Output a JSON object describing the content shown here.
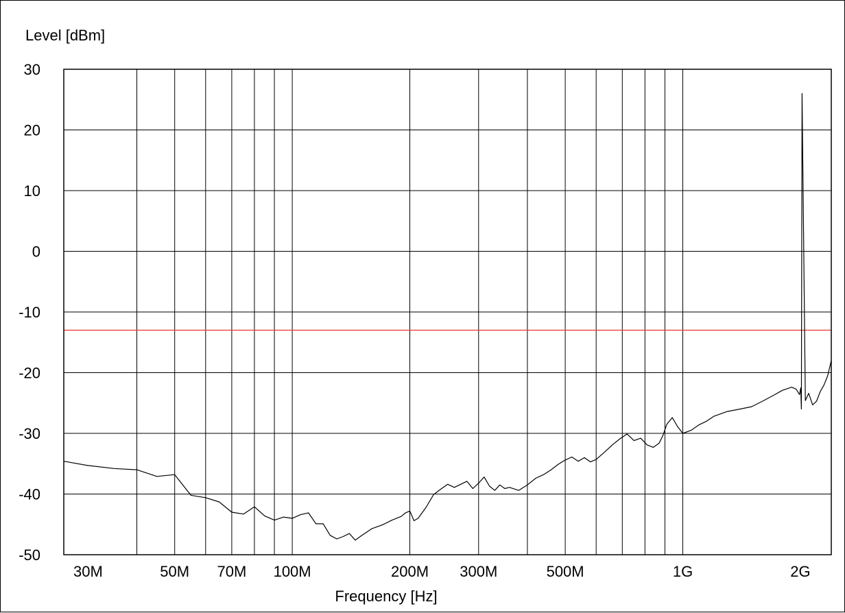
{
  "chart_data": {
    "type": "line",
    "title": "",
    "xlabel": "Frequency [Hz]",
    "ylabel": "Level [dBm]",
    "x_scale": "log",
    "xlim": [
      26000000,
      2400000000
    ],
    "ylim": [
      -50,
      30
    ],
    "grid": true,
    "y_ticks": [
      {
        "value": 30,
        "label": "30"
      },
      {
        "value": 20,
        "label": "20"
      },
      {
        "value": 10,
        "label": "10"
      },
      {
        "value": 0,
        "label": "0"
      },
      {
        "value": -10,
        "label": "-10"
      },
      {
        "value": -20,
        "label": "-20"
      },
      {
        "value": -30,
        "label": "-30"
      },
      {
        "value": -40,
        "label": "-40"
      },
      {
        "value": -50,
        "label": "-50"
      }
    ],
    "x_ticks": [
      {
        "value": 30000000,
        "label": "30M"
      },
      {
        "value": 50000000,
        "label": "50M"
      },
      {
        "value": 70000000,
        "label": "70M"
      },
      {
        "value": 100000000,
        "label": "100M"
      },
      {
        "value": 200000000,
        "label": "200M"
      },
      {
        "value": 300000000,
        "label": "300M"
      },
      {
        "value": 500000000,
        "label": "500M"
      },
      {
        "value": 1000000000,
        "label": "1G"
      },
      {
        "value": 2000000000,
        "label": "2G"
      }
    ],
    "x_gridlines": [
      40000000,
      50000000,
      60000000,
      70000000,
      80000000,
      90000000,
      100000000,
      200000000,
      300000000,
      400000000,
      500000000,
      600000000,
      700000000,
      800000000,
      900000000,
      1000000000
    ],
    "limit_line": {
      "value": -13,
      "color": "#e8413c"
    },
    "series": [
      {
        "color": "#000000",
        "x": [
          26000000,
          30000000,
          35000000,
          40000000,
          45000000,
          50000000,
          55000000,
          60000000,
          65000000,
          70000000,
          75000000,
          80000000,
          85000000,
          90000000,
          95000000,
          100000000,
          105000000,
          110000000,
          115000000,
          120000000,
          125000000,
          130000000,
          135000000,
          140000000,
          145000000,
          150000000,
          160000000,
          170000000,
          180000000,
          190000000,
          195000000,
          200000000,
          205000000,
          210000000,
          220000000,
          230000000,
          240000000,
          250000000,
          260000000,
          270000000,
          280000000,
          290000000,
          300000000,
          310000000,
          320000000,
          330000000,
          340000000,
          350000000,
          360000000,
          380000000,
          400000000,
          420000000,
          440000000,
          460000000,
          480000000,
          500000000,
          520000000,
          540000000,
          560000000,
          580000000,
          600000000,
          630000000,
          660000000,
          690000000,
          720000000,
          750000000,
          780000000,
          810000000,
          840000000,
          870000000,
          890000000,
          910000000,
          940000000,
          970000000,
          1000000000,
          1050000000,
          1100000000,
          1150000000,
          1200000000,
          1300000000,
          1400000000,
          1500000000,
          1600000000,
          1700000000,
          1800000000,
          1900000000,
          1950000000,
          1990000000,
          2005000000,
          2012000000,
          2020000000,
          2060000000,
          2100000000,
          2150000000,
          2200000000,
          2250000000,
          2300000000,
          2350000000,
          2400000000
        ],
        "y": [
          -34.6,
          -35.3,
          -35.8,
          -36.0,
          -37.1,
          -36.8,
          -40.2,
          -40.6,
          -41.3,
          -43.0,
          -43.3,
          -42.1,
          -43.6,
          -44.3,
          -43.8,
          -44.0,
          -43.4,
          -43.1,
          -44.9,
          -44.9,
          -46.8,
          -47.4,
          -47.0,
          -46.5,
          -47.6,
          -46.9,
          -45.7,
          -45.1,
          -44.3,
          -43.7,
          -43.1,
          -42.8,
          -44.4,
          -44.0,
          -42.2,
          -40.1,
          -39.2,
          -38.4,
          -38.9,
          -38.4,
          -37.9,
          -39.1,
          -38.2,
          -37.2,
          -38.7,
          -39.4,
          -38.5,
          -39.1,
          -38.9,
          -39.4,
          -38.5,
          -37.4,
          -36.8,
          -36.0,
          -35.1,
          -34.4,
          -33.9,
          -34.6,
          -34.0,
          -34.7,
          -34.3,
          -33.1,
          -31.9,
          -30.9,
          -30.1,
          -31.2,
          -30.8,
          -31.9,
          -32.3,
          -31.6,
          -30.3,
          -28.5,
          -27.4,
          -28.9,
          -30.0,
          -29.5,
          -28.6,
          -28.0,
          -27.2,
          -26.4,
          -26.0,
          -25.6,
          -24.7,
          -23.8,
          -22.9,
          -22.4,
          -22.7,
          -23.6,
          -22.5,
          -26.0,
          26.0,
          -24.6,
          -23.4,
          -25.3,
          -24.7,
          -23.1,
          -22.0,
          -20.5,
          -18.0
        ]
      }
    ]
  }
}
